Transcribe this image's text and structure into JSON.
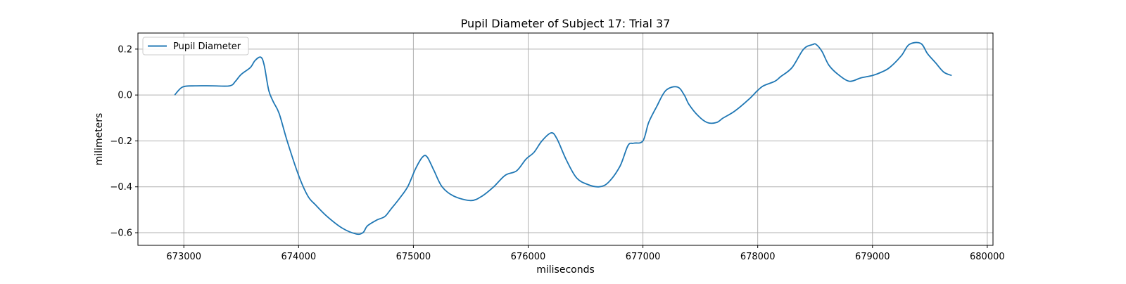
{
  "chart_data": {
    "type": "line",
    "title": "Pupil Diameter of Subject 17: Trial 37",
    "xlabel": "miliseconds",
    "ylabel": "milimeters",
    "xlim": [
      672600,
      680050
    ],
    "ylim": [
      -0.655,
      0.27
    ],
    "xticks": [
      673000,
      674000,
      675000,
      676000,
      677000,
      678000,
      679000,
      680000
    ],
    "yticks": [
      -0.6,
      -0.4,
      -0.2,
      0.0,
      0.2
    ],
    "xtick_labels": [
      "673000",
      "674000",
      "675000",
      "676000",
      "677000",
      "678000",
      "679000",
      "680000"
    ],
    "ytick_labels": [
      "−0.6",
      "−0.4",
      "−0.2",
      "0.0",
      "0.2"
    ],
    "grid": true,
    "legend_position": "upper-left",
    "series": [
      {
        "name": "Pupil Diameter",
        "color": "#1f77b4",
        "x": [
          672920,
          672990,
          673100,
          673250,
          673400,
          673450,
          673500,
          673580,
          673620,
          673670,
          673700,
          673740,
          673780,
          673830,
          673900,
          674000,
          674080,
          674150,
          674250,
          674380,
          674500,
          674560,
          674600,
          674680,
          674750,
          674800,
          674880,
          674950,
          675020,
          675080,
          675120,
          675180,
          675250,
          675350,
          675500,
          675600,
          675700,
          675800,
          675900,
          675980,
          676050,
          676120,
          676200,
          676250,
          676330,
          676420,
          676520,
          676620,
          676700,
          676800,
          676870,
          676920,
          677000,
          677050,
          677120,
          677200,
          677300,
          677360,
          677400,
          677480,
          677560,
          677640,
          677700,
          677800,
          677920,
          678000,
          678050,
          678150,
          678200,
          678300,
          678400,
          678480,
          678510,
          678560,
          678620,
          678700,
          678800,
          678900,
          679000,
          679080,
          679150,
          679250,
          679320,
          679420,
          679480,
          679550,
          679620,
          679690
        ],
        "y": [
          0.0,
          0.035,
          0.04,
          0.04,
          0.04,
          0.06,
          0.09,
          0.12,
          0.15,
          0.165,
          0.13,
          0.02,
          -0.03,
          -0.08,
          -0.2,
          -0.35,
          -0.44,
          -0.48,
          -0.53,
          -0.58,
          -0.605,
          -0.6,
          -0.57,
          -0.545,
          -0.53,
          -0.5,
          -0.45,
          -0.4,
          -0.32,
          -0.27,
          -0.27,
          -0.33,
          -0.4,
          -0.44,
          -0.46,
          -0.44,
          -0.4,
          -0.35,
          -0.33,
          -0.28,
          -0.25,
          -0.2,
          -0.165,
          -0.19,
          -0.28,
          -0.36,
          -0.39,
          -0.4,
          -0.38,
          -0.31,
          -0.22,
          -0.21,
          -0.2,
          -0.12,
          -0.05,
          0.02,
          0.035,
          0.0,
          -0.04,
          -0.09,
          -0.12,
          -0.12,
          -0.1,
          -0.07,
          -0.02,
          0.02,
          0.04,
          0.06,
          0.08,
          0.12,
          0.2,
          0.22,
          0.22,
          0.19,
          0.13,
          0.09,
          0.06,
          0.075,
          0.085,
          0.1,
          0.12,
          0.17,
          0.22,
          0.225,
          0.18,
          0.14,
          0.1,
          0.085
        ]
      }
    ]
  }
}
